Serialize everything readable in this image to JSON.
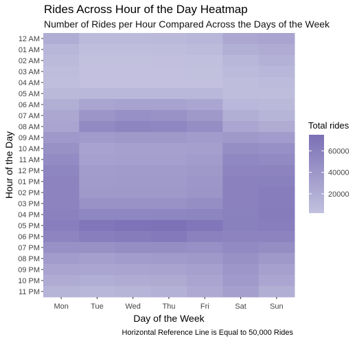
{
  "chart_data": {
    "type": "heatmap",
    "title": "Rides Across Hour of the Day Heatmap",
    "subtitle": "Number of Rides per Hour Compared Across the Days of the Week",
    "xlabel": "Day of the Week",
    "ylabel": "Hour of the Day",
    "caption": "Horizontal Reference Line is Equal to 50,000 Rides",
    "x": [
      "Mon",
      "Tue",
      "Wed",
      "Thu",
      "Fri",
      "Sat",
      "Sun"
    ],
    "y": [
      "12 AM",
      "01 AM",
      "02 AM",
      "03 AM",
      "04 AM",
      "05 AM",
      "06 AM",
      "07 AM",
      "08 AM",
      "09 AM",
      "10 AM",
      "11 AM",
      "12 PM",
      "01 PM",
      "02 PM",
      "03 PM",
      "04 PM",
      "05 PM",
      "06 PM",
      "07 PM",
      "08 PM",
      "09 PM",
      "10 PM",
      "11 PM"
    ],
    "values": [
      [
        20000,
        8000,
        8000,
        9000,
        12000,
        25000,
        28000
      ],
      [
        12000,
        5000,
        5000,
        6000,
        7000,
        18000,
        22000
      ],
      [
        8000,
        3000,
        3000,
        3500,
        4000,
        12000,
        16000
      ],
      [
        6000,
        2500,
        2500,
        2500,
        3000,
        8000,
        11000
      ],
      [
        5000,
        2500,
        2500,
        2500,
        2500,
        6000,
        7000
      ],
      [
        9000,
        10000,
        10000,
        10000,
        10000,
        6000,
        6000
      ],
      [
        18000,
        28000,
        30000,
        30000,
        26000,
        10000,
        9000
      ],
      [
        25000,
        42000,
        46000,
        44000,
        38000,
        18000,
        14000
      ],
      [
        28000,
        52000,
        56000,
        54000,
        48000,
        26000,
        22000
      ],
      [
        38000,
        36000,
        38000,
        38000,
        35000,
        38000,
        35000
      ],
      [
        45000,
        30000,
        32000,
        32000,
        33000,
        48000,
        46000
      ],
      [
        50000,
        32000,
        33000,
        33000,
        35000,
        53000,
        52000
      ],
      [
        55000,
        35000,
        36000,
        36000,
        38000,
        57000,
        58000
      ],
      [
        58000,
        36000,
        37000,
        37000,
        40000,
        60000,
        61000
      ],
      [
        58000,
        38000,
        38000,
        38000,
        42000,
        60000,
        63000
      ],
      [
        58000,
        44000,
        44000,
        44000,
        48000,
        60000,
        63000
      ],
      [
        60000,
        54000,
        54000,
        55000,
        56000,
        61000,
        64000
      ],
      [
        62000,
        70000,
        72000,
        73000,
        70000,
        61000,
        62000
      ],
      [
        57000,
        62000,
        64000,
        66000,
        60000,
        58000,
        58000
      ],
      [
        45000,
        45000,
        48000,
        48000,
        46000,
        52000,
        48000
      ],
      [
        35000,
        33000,
        35000,
        36000,
        38000,
        45000,
        38000
      ],
      [
        28000,
        26000,
        28000,
        29000,
        32000,
        40000,
        32000
      ],
      [
        22000,
        19000,
        22000,
        23000,
        28000,
        37000,
        26000
      ],
      [
        14000,
        12000,
        14000,
        16000,
        24000,
        33000,
        18000
      ]
    ],
    "legend": {
      "title": "Total rides",
      "position": "right",
      "ticks": [
        20000,
        40000,
        60000
      ],
      "tick_labels": [
        "20000",
        "40000",
        "60000"
      ],
      "range": [
        2000,
        75000
      ]
    },
    "colors": {
      "low": "#c2c1de",
      "high": "#7b70b6",
      "panel_bg": "#ebebeb",
      "grid": "#ffffff"
    }
  }
}
